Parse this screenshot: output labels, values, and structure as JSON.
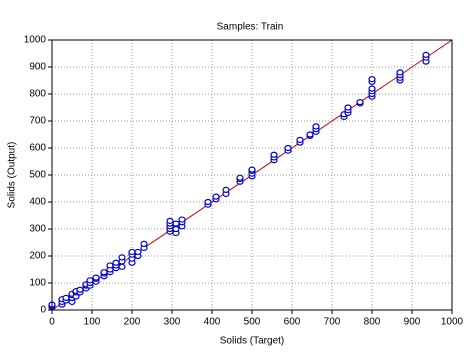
{
  "chart_data": {
    "type": "scatter",
    "title": "Samples: Train",
    "x_label": "Solids (Target)",
    "y_label": "Solids (Output)",
    "series": [
      {
        "color": "#0000cc",
        "x": [
          0,
          0,
          0,
          25,
          25,
          25,
          35,
          35,
          50,
          50,
          50,
          50,
          60,
          60,
          60,
          70,
          70,
          85,
          85,
          85,
          95,
          95,
          95,
          110,
          110,
          110,
          130,
          130,
          130,
          145,
          145,
          145,
          160,
          160,
          160,
          175,
          175,
          175,
          200,
          200,
          200,
          200,
          215,
          215,
          230,
          230,
          295,
          295,
          295,
          295,
          295,
          310,
          310,
          310,
          325,
          325,
          325,
          390,
          390,
          410,
          410,
          435,
          435,
          470,
          470,
          470,
          500,
          500,
          500,
          500,
          555,
          555,
          555,
          590,
          590,
          620,
          620,
          645,
          645,
          660,
          660,
          660,
          730,
          730,
          740,
          740,
          740,
          770,
          770,
          800,
          800,
          800,
          800,
          800,
          800,
          870,
          870,
          870,
          870,
          935,
          935,
          935
        ],
        "y": [
          10,
          15,
          20,
          20,
          30,
          40,
          35,
          45,
          30,
          45,
          55,
          60,
          50,
          65,
          70,
          65,
          75,
          80,
          90,
          95,
          90,
          100,
          110,
          105,
          115,
          120,
          125,
          135,
          140,
          140,
          150,
          165,
          155,
          165,
          175,
          160,
          180,
          195,
          175,
          190,
          205,
          215,
          200,
          215,
          230,
          245,
          290,
          300,
          310,
          320,
          330,
          285,
          300,
          320,
          310,
          325,
          335,
          390,
          400,
          410,
          420,
          430,
          445,
          475,
          485,
          490,
          495,
          505,
          515,
          520,
          555,
          565,
          575,
          590,
          600,
          620,
          630,
          645,
          650,
          660,
          670,
          680,
          715,
          725,
          730,
          740,
          750,
          765,
          770,
          790,
          800,
          810,
          820,
          845,
          855,
          850,
          860,
          870,
          880,
          920,
          935,
          945
        ]
      }
    ],
    "fit_line": {
      "x": [
        0,
        1000
      ],
      "y": [
        0,
        1000
      ],
      "color": "#cc0000"
    },
    "xlim": [
      0,
      1000
    ],
    "ylim": [
      0,
      1000
    ],
    "xticks": [
      0,
      100,
      200,
      300,
      400,
      500,
      600,
      700,
      800,
      900,
      1000
    ],
    "yticks": [
      0,
      100,
      200,
      300,
      400,
      500,
      600,
      700,
      800,
      900,
      1000
    ],
    "grid": true
  }
}
